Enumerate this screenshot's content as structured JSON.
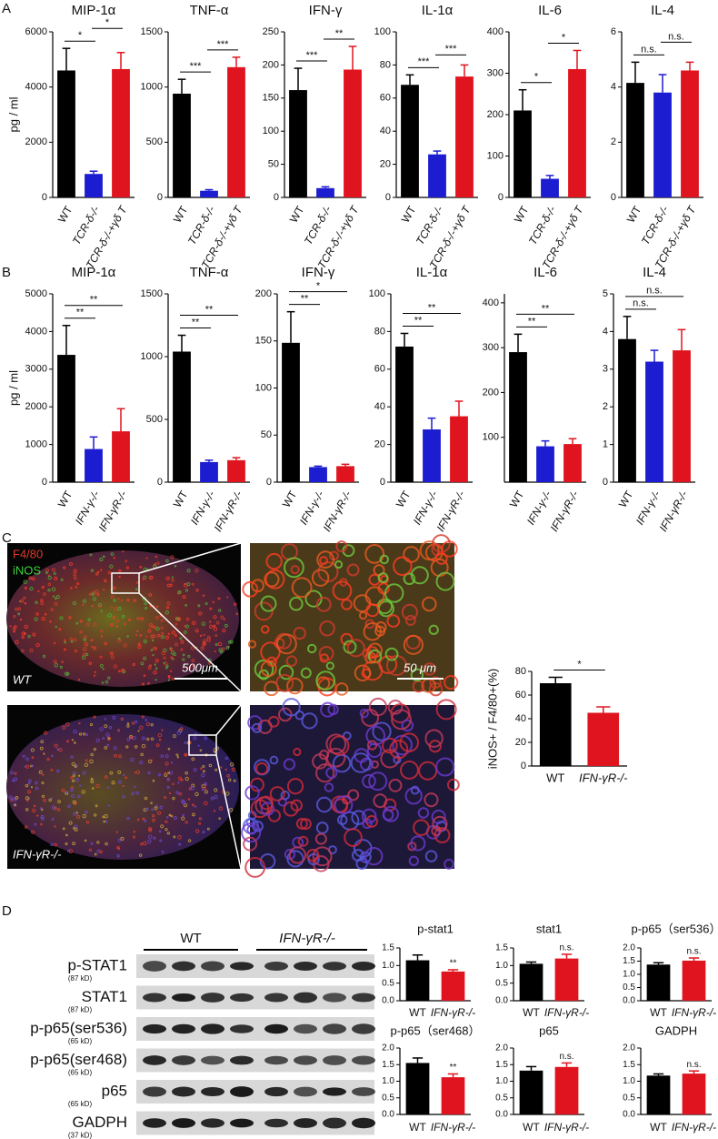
{
  "panels": [
    "A",
    "B",
    "C",
    "D"
  ],
  "chart_data": [
    {
      "type": "bar",
      "title": "MIP-1α",
      "ylabel": "pg / ml",
      "categories": [
        "WT",
        "TCR-δ-/-",
        "TCR-δ-/-+γδ T"
      ],
      "values": [
        4600,
        850,
        4650
      ],
      "errors": [
        800,
        100,
        600
      ],
      "colors": [
        "#000000",
        "#1c1cd0",
        "#e0141e"
      ],
      "ylim": [
        0,
        6000
      ],
      "yticks": [
        0,
        2000,
        4000,
        6000
      ],
      "annotations": [
        {
          "label": "*",
          "between": [
            0,
            1
          ]
        },
        {
          "label": "*",
          "between": [
            1,
            2
          ]
        }
      ]
    },
    {
      "type": "bar",
      "title": "TNF-α",
      "categories": [
        "WT",
        "TCR-δ-/-",
        "TCR-δ-/-+γδ T"
      ],
      "values": [
        940,
        60,
        1180
      ],
      "errors": [
        130,
        10,
        90
      ],
      "colors": [
        "#000000",
        "#1c1cd0",
        "#e0141e"
      ],
      "ylim": [
        0,
        1500
      ],
      "yticks": [
        0,
        500,
        1000,
        1500
      ],
      "annotations": [
        {
          "label": "***",
          "between": [
            0,
            1
          ]
        },
        {
          "label": "***",
          "between": [
            1,
            2
          ]
        }
      ]
    },
    {
      "type": "bar",
      "title": "IFN-γ",
      "categories": [
        "WT",
        "TCR-δ-/-",
        "TCR-δ-/-+γδ T"
      ],
      "values": [
        162,
        14,
        193
      ],
      "errors": [
        33,
        2,
        35
      ],
      "colors": [
        "#000000",
        "#1c1cd0",
        "#e0141e"
      ],
      "ylim": [
        0,
        250
      ],
      "yticks": [
        0,
        50,
        100,
        150,
        200,
        250
      ],
      "annotations": [
        {
          "label": "***",
          "between": [
            0,
            1
          ]
        },
        {
          "label": "**",
          "between": [
            1,
            2
          ]
        }
      ]
    },
    {
      "type": "bar",
      "title": "IL-1α",
      "categories": [
        "WT",
        "TCR-δ-/-",
        "TCR-δ-/-+γδ T"
      ],
      "values": [
        68,
        26,
        73
      ],
      "errors": [
        6,
        2,
        7
      ],
      "colors": [
        "#000000",
        "#1c1cd0",
        "#e0141e"
      ],
      "ylim": [
        0,
        100
      ],
      "yticks": [
        0,
        20,
        40,
        60,
        80,
        100
      ],
      "annotations": [
        {
          "label": "***",
          "between": [
            0,
            1
          ]
        },
        {
          "label": "***",
          "between": [
            1,
            2
          ]
        }
      ]
    },
    {
      "type": "bar",
      "title": "IL-6",
      "categories": [
        "WT",
        "TCR-δ-/-",
        "TCR-δ-/-+γδ T"
      ],
      "values": [
        210,
        45,
        310
      ],
      "errors": [
        50,
        8,
        45
      ],
      "colors": [
        "#000000",
        "#1c1cd0",
        "#e0141e"
      ],
      "ylim": [
        0,
        400
      ],
      "yticks": [
        0,
        100,
        200,
        300,
        400
      ],
      "annotations": [
        {
          "label": "*",
          "between": [
            0,
            1
          ]
        },
        {
          "label": "*",
          "between": [
            1,
            2
          ]
        }
      ]
    },
    {
      "type": "bar",
      "title": "IL-4",
      "categories": [
        "WT",
        "TCR-δ-/-",
        "TCR-δ-/-+γδ T"
      ],
      "values": [
        4.15,
        3.8,
        4.6
      ],
      "errors": [
        0.75,
        0.65,
        0.3
      ],
      "colors": [
        "#000000",
        "#1c1cd0",
        "#e0141e"
      ],
      "ylim": [
        0,
        6
      ],
      "yticks": [
        0,
        2,
        4,
        6
      ],
      "annotations": [
        {
          "label": "n.s.",
          "between": [
            0,
            1
          ]
        },
        {
          "label": "n.s.",
          "between": [
            1,
            2
          ]
        }
      ]
    },
    {
      "type": "bar",
      "title": "MIP-1α",
      "ylabel": "pg / ml",
      "categories": [
        "WT",
        "IFN-γ-/-",
        "IFN-γR-/-"
      ],
      "values": [
        3380,
        880,
        1350
      ],
      "errors": [
        780,
        320,
        600
      ],
      "colors": [
        "#000000",
        "#1c1cd0",
        "#e0141e"
      ],
      "ylim": [
        0,
        5000
      ],
      "yticks": [
        0,
        1000,
        2000,
        3000,
        4000,
        5000
      ],
      "annotations": [
        {
          "label": "**",
          "between": [
            0,
            1
          ]
        },
        {
          "label": "**",
          "between": [
            0,
            2
          ]
        }
      ]
    },
    {
      "type": "bar",
      "title": "TNF-α",
      "categories": [
        "WT",
        "IFN-γ-/-",
        "IFN-γR-/-"
      ],
      "values": [
        1040,
        160,
        175
      ],
      "errors": [
        130,
        15,
        20
      ],
      "colors": [
        "#000000",
        "#1c1cd0",
        "#e0141e"
      ],
      "ylim": [
        0,
        1500
      ],
      "yticks": [
        0,
        500,
        1000,
        1500
      ],
      "annotations": [
        {
          "label": "**",
          "between": [
            0,
            1
          ]
        },
        {
          "label": "**",
          "between": [
            0,
            2
          ]
        }
      ]
    },
    {
      "type": "bar",
      "title": "IFN-γ",
      "categories": [
        "WT",
        "IFN-γ-/-",
        "IFN-γR-/-"
      ],
      "values": [
        148,
        16,
        17
      ],
      "errors": [
        33,
        1,
        2
      ],
      "colors": [
        "#000000",
        "#1c1cd0",
        "#e0141e"
      ],
      "ylim": [
        0,
        200
      ],
      "yticks": [
        0,
        50,
        100,
        150,
        200
      ],
      "annotations": [
        {
          "label": "**",
          "between": [
            0,
            1
          ]
        },
        {
          "label": "*",
          "between": [
            0,
            2
          ]
        }
      ]
    },
    {
      "type": "bar",
      "title": "IL-1α",
      "categories": [
        "WT",
        "IFN-γ-/-",
        "IFN-γR-/-"
      ],
      "values": [
        72,
        28,
        35
      ],
      "errors": [
        7,
        6,
        8
      ],
      "colors": [
        "#000000",
        "#1c1cd0",
        "#e0141e"
      ],
      "ylim": [
        0,
        100
      ],
      "yticks": [
        0,
        20,
        40,
        60,
        80,
        100
      ],
      "annotations": [
        {
          "label": "**",
          "between": [
            0,
            1
          ]
        },
        {
          "label": "**",
          "between": [
            0,
            2
          ]
        }
      ]
    },
    {
      "type": "bar",
      "title": "IL-6",
      "categories": [
        "WT",
        "IFN-γ-/-",
        "IFN-γR-/-"
      ],
      "values": [
        290,
        80,
        85
      ],
      "errors": [
        40,
        12,
        12
      ],
      "colors": [
        "#000000",
        "#1c1cd0",
        "#e0141e"
      ],
      "ylim": [
        0,
        420
      ],
      "yticks": [
        100,
        200,
        300,
        400
      ],
      "annotations": [
        {
          "label": "**",
          "between": [
            0,
            1
          ]
        },
        {
          "label": "**",
          "between": [
            0,
            2
          ]
        }
      ]
    },
    {
      "type": "bar",
      "title": "IL-4",
      "categories": [
        "WT",
        "IFN-γ-/-",
        "IFN-γR-/-"
      ],
      "values": [
        3.8,
        3.2,
        3.5
      ],
      "errors": [
        0.6,
        0.3,
        0.55
      ],
      "colors": [
        "#000000",
        "#1c1cd0",
        "#e0141e"
      ],
      "ylim": [
        0,
        5
      ],
      "yticks": [
        0,
        1,
        2,
        3,
        4,
        5
      ],
      "annotations": [
        {
          "label": "n.s.",
          "between": [
            0,
            1
          ]
        },
        {
          "label": "n.s.",
          "between": [
            0,
            2
          ]
        }
      ]
    },
    {
      "type": "bar",
      "ylabel": "iNOS+ / F4/80+(%)",
      "categories": [
        "WT",
        "IFN-γR-/-"
      ],
      "values": [
        70,
        45
      ],
      "errors": [
        5,
        5
      ],
      "colors": [
        "#000000",
        "#e0141e"
      ],
      "ylim": [
        0,
        80
      ],
      "yticks": [
        0,
        20,
        40,
        60,
        80
      ],
      "annotations": [
        {
          "label": "*",
          "between": [
            0,
            1
          ]
        }
      ]
    },
    {
      "type": "bar",
      "title": "p-stat1",
      "categories": [
        "WT",
        "IFN-γR-/-"
      ],
      "values": [
        1.15,
        0.83
      ],
      "errors": [
        0.15,
        0.05
      ],
      "colors": [
        "#000000",
        "#e0141e"
      ],
      "ylim": [
        0,
        1.5
      ],
      "yticks": [
        {
          "value": 0,
          "label": "0.0"
        },
        0.5,
        {
          "value": 1,
          "label": "1.0"
        },
        1.5
      ],
      "annotations": [
        {
          "label": "**",
          "between": [
            1
          ]
        }
      ]
    },
    {
      "type": "bar",
      "title": "stat1",
      "categories": [
        "WT",
        "IFN-γR-/-"
      ],
      "values": [
        1.05,
        1.2
      ],
      "errors": [
        0.05,
        0.12
      ],
      "colors": [
        "#000000",
        "#e0141e"
      ],
      "ylim": [
        0,
        1.5
      ],
      "yticks": [
        {
          "value": 0,
          "label": "0.0"
        },
        0.5,
        {
          "value": 1,
          "label": "1.0"
        },
        1.5
      ],
      "annotations": [
        {
          "label": "n.s.",
          "between": [
            1
          ]
        }
      ]
    },
    {
      "type": "bar",
      "title": "p-p65（ser536）",
      "categories": [
        "WT",
        "IFN-γR-/-"
      ],
      "values": [
        1.37,
        1.52
      ],
      "errors": [
        0.07,
        0.1
      ],
      "colors": [
        "#000000",
        "#e0141e"
      ],
      "ylim": [
        0,
        2
      ],
      "yticks": [
        {
          "value": 0,
          "label": "0.0"
        },
        0.5,
        {
          "value": 1,
          "label": "1.0"
        },
        1.5,
        {
          "value": 2,
          "label": "2.0"
        }
      ],
      "annotations": [
        {
          "label": "n.s.",
          "between": [
            1
          ]
        }
      ]
    },
    {
      "type": "bar",
      "title": "p-p65（ser468）",
      "categories": [
        "WT",
        "IFN-γR-/-"
      ],
      "values": [
        1.55,
        1.12
      ],
      "errors": [
        0.15,
        0.1
      ],
      "colors": [
        "#000000",
        "#e0141e"
      ],
      "ylim": [
        0,
        2
      ],
      "yticks": [
        {
          "value": 0,
          "label": "0.0"
        },
        0.5,
        {
          "value": 1,
          "label": "1.0"
        },
        1.5,
        {
          "value": 2,
          "label": "2.0"
        }
      ],
      "annotations": [
        {
          "label": "**",
          "between": [
            1
          ]
        }
      ]
    },
    {
      "type": "bar",
      "title": "p65",
      "categories": [
        "WT",
        "IFN-γR-/-"
      ],
      "values": [
        1.32,
        1.43
      ],
      "errors": [
        0.12,
        0.12
      ],
      "colors": [
        "#000000",
        "#e0141e"
      ],
      "ylim": [
        0,
        2
      ],
      "yticks": [
        {
          "value": 0,
          "label": "0.0"
        },
        0.5,
        {
          "value": 1,
          "label": "1.0"
        },
        1.5,
        {
          "value": 2,
          "label": "2.0"
        }
      ],
      "annotations": [
        {
          "label": "n.s.",
          "between": [
            1
          ]
        }
      ]
    },
    {
      "type": "bar",
      "title": "GADPH",
      "categories": [
        "WT",
        "IFN-γR-/-"
      ],
      "values": [
        1.17,
        1.23
      ],
      "errors": [
        0.05,
        0.08
      ],
      "colors": [
        "#000000",
        "#e0141e"
      ],
      "ylim": [
        0,
        2
      ],
      "yticks": [
        {
          "value": 0,
          "label": "0.0"
        },
        0.5,
        {
          "value": 1,
          "label": "1.0"
        },
        1.5,
        {
          "value": 2,
          "label": "2.0"
        }
      ],
      "annotations": [
        {
          "label": "n.s.",
          "between": [
            1
          ]
        }
      ]
    }
  ],
  "microscopy": {
    "stains": [
      "F4/80",
      "iNOS"
    ],
    "groups": [
      "WT",
      "IFN-γR-/-"
    ],
    "scale_bars": [
      "500μm",
      "50 μm"
    ]
  },
  "blot": {
    "groups": [
      "WT",
      "IFN-γR-/-"
    ],
    "proteins": [
      {
        "name": "p-STAT1",
        "size": "(87 kD)"
      },
      {
        "name": "STAT1",
        "size": "(87 kD)"
      },
      {
        "name": "p-p65(ser536)",
        "size": "(65 kD)"
      },
      {
        "name": "p-p65(ser468)",
        "size": "(65 kD)"
      },
      {
        "name": "p65",
        "size": "(65 kD)"
      },
      {
        "name": "GADPH",
        "size": "(37 kD)"
      }
    ]
  }
}
